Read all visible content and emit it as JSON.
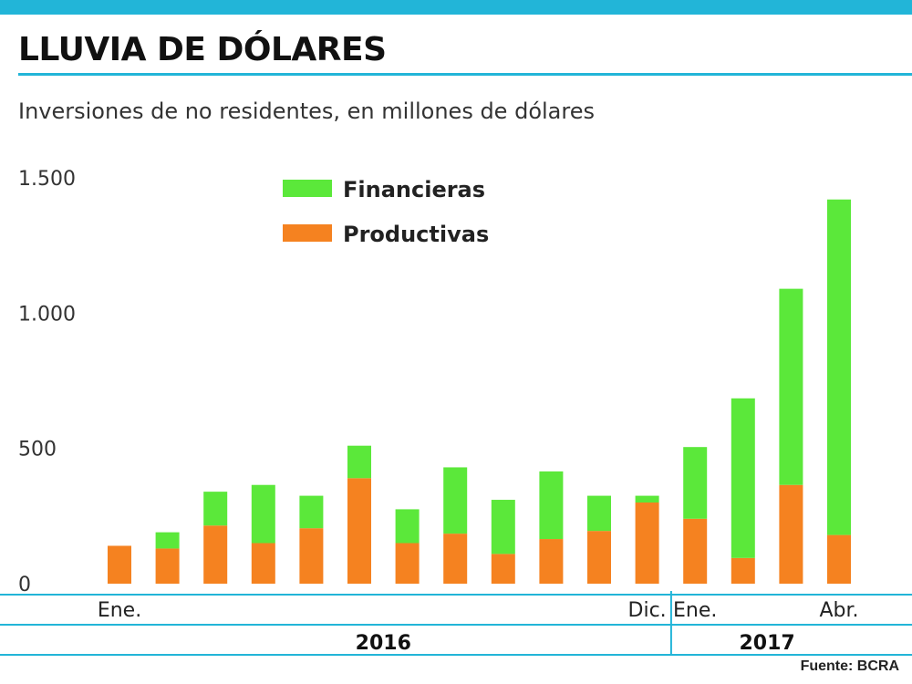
{
  "header": {
    "title": "LLUVIA DE DÓLARES",
    "subtitle": "Inversiones de no residentes, en millones de dólares"
  },
  "footer": {
    "source": "Fuente: BCRA"
  },
  "colors": {
    "accent": "#22b5d8",
    "financieras": "#5be83a",
    "productivas": "#f58220"
  },
  "chart_data": {
    "type": "bar",
    "stacked": true,
    "categories": [
      "Ene.",
      "",
      "",
      "",
      "",
      "",
      "",
      "",
      "",
      "",
      "",
      "Dic.",
      "Ene.",
      "",
      "",
      "Abr."
    ],
    "year_groups": [
      {
        "label": "2016",
        "start": 0,
        "end": 11
      },
      {
        "label": "2017",
        "start": 12,
        "end": 15
      }
    ],
    "series": [
      {
        "name": "Productivas",
        "color": "#f58220",
        "values": [
          140,
          130,
          215,
          150,
          205,
          390,
          150,
          185,
          110,
          165,
          195,
          300,
          240,
          95,
          365,
          180
        ]
      },
      {
        "name": "Financieras",
        "color": "#5be83a",
        "values": [
          0,
          60,
          125,
          215,
          120,
          120,
          125,
          245,
          200,
          250,
          130,
          25,
          265,
          590,
          725,
          1240
        ]
      }
    ],
    "yticks": [
      0,
      500,
      1000,
      1500
    ],
    "ytick_labels": [
      "0",
      "500",
      "1.000",
      "1.500"
    ],
    "ylim": [
      0,
      1500
    ],
    "legend_position": "top-left",
    "grid": false
  }
}
